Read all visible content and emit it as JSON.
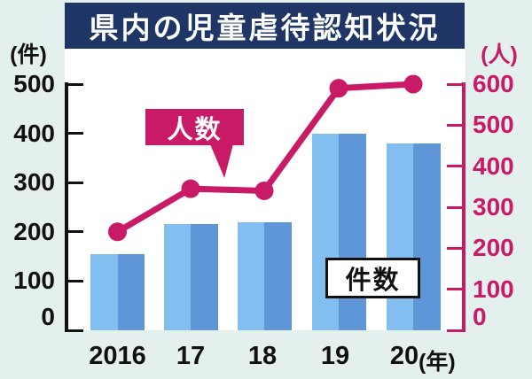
{
  "title": "県内の児童虐待認知状況",
  "chart_data": {
    "type": "bar+line",
    "title": "県内の児童虐待認知状況",
    "categories": [
      "2016",
      "17",
      "18",
      "19",
      "20"
    ],
    "x_axis_suffix": "(年)",
    "left_axis": {
      "unit": "(件)",
      "min": 0,
      "max": 500,
      "ticks": [
        0,
        100,
        200,
        300,
        400,
        500
      ]
    },
    "right_axis": {
      "unit": "(人)",
      "min": 0,
      "max": 600,
      "ticks": [
        0,
        100,
        200,
        300,
        400,
        500,
        600
      ]
    },
    "series": [
      {
        "name": "件数",
        "type": "bar",
        "axis": "left",
        "values": [
          155,
          215,
          220,
          400,
          380
        ]
      },
      {
        "name": "人数",
        "type": "line",
        "axis": "right",
        "values": [
          240,
          345,
          340,
          590,
          600
        ]
      }
    ],
    "legend": {
      "bar_label": "件数",
      "line_label": "人数",
      "legend_style": "callout"
    },
    "grid": false
  },
  "colors": {
    "background": "#E4F0ED",
    "plot_background": "#FFFFFF",
    "title_background": "#1E3566",
    "title_text": "#FFFFFF",
    "accent_magenta": "#C91A67",
    "bar_light": "#82BEF0",
    "bar_dark": "#5E96D8",
    "axis_left": "#111111"
  }
}
